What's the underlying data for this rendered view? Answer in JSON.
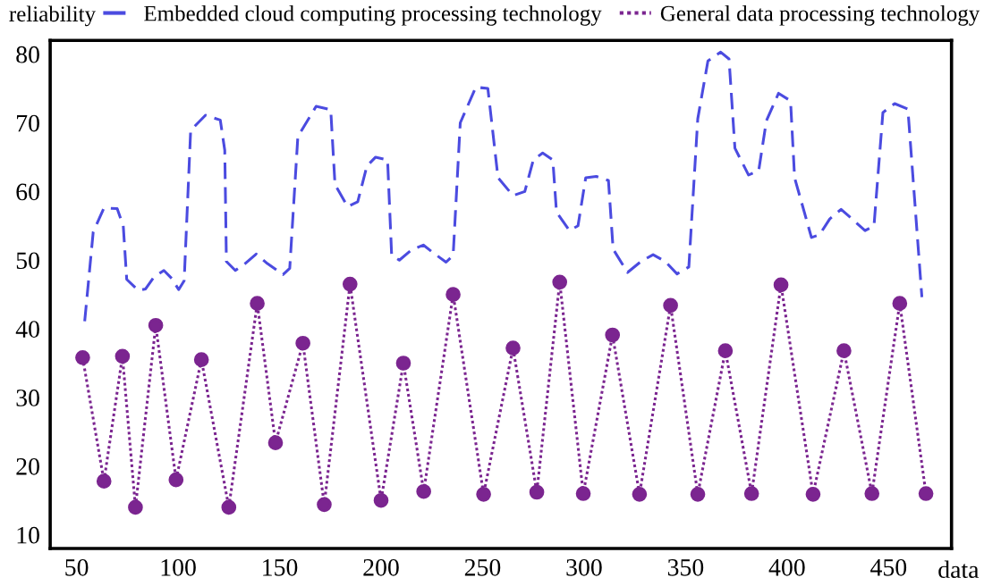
{
  "chart_data": {
    "type": "line",
    "xlabel": "data",
    "ylabel": "reliability",
    "xlim": [
      37,
      481
    ],
    "ylim": [
      8,
      82
    ],
    "xticks": [
      50,
      100,
      150,
      200,
      250,
      300,
      350,
      400,
      450
    ],
    "yticks": [
      10,
      20,
      30,
      40,
      50,
      60,
      70,
      80
    ],
    "grid": false,
    "legend": "top",
    "series": [
      {
        "name": "Embedded cloud computing processing technology",
        "color": "#4b4be0",
        "line_style": "dashed",
        "marker": "none",
        "x": [
          54,
          58.2,
          63.5,
          70,
          73,
          74.7,
          80.3,
          84,
          88,
          93,
          97,
          100.3,
          103,
          106.2,
          113.5,
          120.8,
          123,
          123.8,
          128.2,
          133,
          138.5,
          144,
          151.7,
          155,
          159,
          168,
          175.2,
          177.3,
          183.5,
          188.5,
          193,
          197.3,
          203.2,
          205.2,
          209,
          215,
          220.8,
          226,
          232,
          235.5,
          239,
          246.7,
          252.6,
          257.6,
          265,
          270.8,
          275,
          279.6,
          284.6,
          286.4,
          292.8,
          297,
          300.8,
          306,
          312,
          314.3,
          321.4,
          328,
          334,
          340,
          345.8,
          351.6,
          356,
          361,
          367.3,
          371.4,
          374.3,
          381,
          386,
          389.8,
          395.8,
          401.7,
          403.7,
          412,
          416,
          421,
          426.6,
          432,
          438.4,
          442.8,
          447.2,
          453,
          459.5,
          466.4
        ],
        "values": [
          41.1,
          54.1,
          57.6,
          57.5,
          55,
          47.2,
          45.6,
          45.8,
          47.5,
          48.5,
          47.3,
          45.7,
          47,
          68.9,
          71.1,
          70.4,
          66,
          49.8,
          48.5,
          49.5,
          50.9,
          49.5,
          47.9,
          48.8,
          68,
          72.4,
          71.9,
          61,
          57.8,
          58.5,
          63.7,
          65,
          64.6,
          50.7,
          50,
          51.5,
          52.2,
          51,
          49.7,
          50.7,
          70,
          75.2,
          75,
          62,
          59.4,
          60,
          64.6,
          65.6,
          64.6,
          57,
          54.3,
          55,
          62,
          62.2,
          61.6,
          51.6,
          48.2,
          49.8,
          50.8,
          49.8,
          48,
          49,
          70.6,
          79,
          80.3,
          79.3,
          66.3,
          62.4,
          63,
          70.3,
          74.3,
          73.2,
          62,
          53.3,
          53.7,
          56,
          57.4,
          56,
          54.3,
          55,
          71.5,
          72.8,
          72,
          44.6
        ]
      },
      {
        "name": "General data processing technology",
        "color": "#7b2590",
        "line_style": "dotted",
        "marker": "circle",
        "x": [
          53,
          63.5,
          72.6,
          79,
          89,
          99,
          111.5,
          125,
          139,
          148,
          161.5,
          172,
          184.7,
          200,
          211,
          221,
          235.5,
          250.5,
          265,
          276.7,
          288,
          299.6,
          314,
          327.3,
          342.6,
          356,
          369.6,
          382.5,
          397,
          412.8,
          428,
          441.8,
          455.5,
          468.4
        ],
        "values": [
          35.8,
          17.8,
          36,
          14,
          40.5,
          18,
          35.5,
          14,
          43.7,
          23.4,
          37.9,
          14.4,
          46.5,
          15,
          35,
          16.3,
          45,
          15.9,
          37.2,
          16.2,
          46.8,
          16,
          39.1,
          15.9,
          43.4,
          15.9,
          36.8,
          16,
          46.4,
          15.9,
          36.8,
          16,
          43.7,
          16
        ]
      }
    ]
  }
}
